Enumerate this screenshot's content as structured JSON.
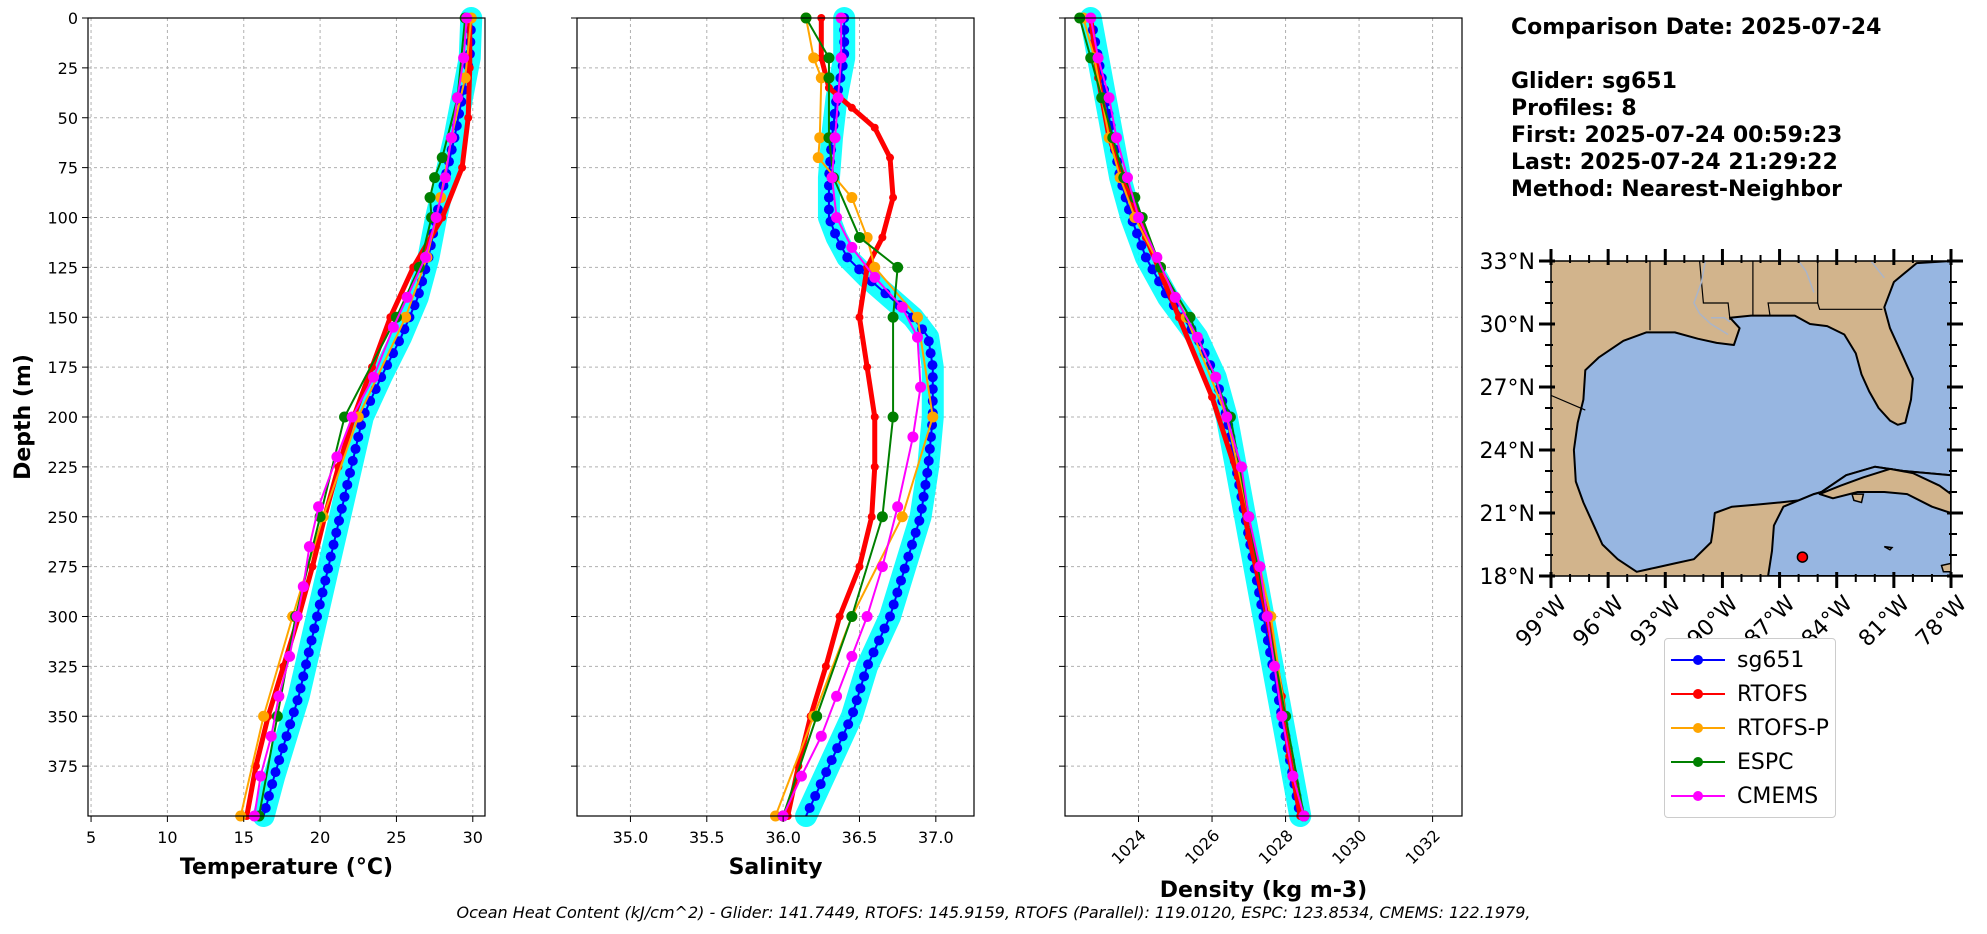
{
  "chart_data": [
    {
      "type": "line",
      "xlabel": "Temperature (°C)",
      "ylabel": "Depth (m)",
      "xlim": [
        4.8,
        30.8
      ],
      "ylim": [
        400,
        0
      ],
      "x_ticks": [
        "5",
        "10",
        "15",
        "20",
        "25",
        "30"
      ],
      "x_tick_values": [
        5,
        10,
        15,
        20,
        25,
        30
      ],
      "y_ticks": [
        "0",
        "25",
        "50",
        "75",
        "100",
        "125",
        "150",
        "175",
        "200",
        "225",
        "250",
        "275",
        "300",
        "325",
        "350",
        "375"
      ],
      "y_tick_values": [
        0,
        25,
        50,
        75,
        100,
        125,
        150,
        175,
        200,
        225,
        250,
        275,
        300,
        325,
        350,
        375
      ],
      "grid": true,
      "series": [
        {
          "name": "sg651",
          "color": "#0000ff",
          "depth": [
            0,
            20,
            40,
            60,
            80,
            100,
            120,
            140,
            160,
            180,
            200,
            220,
            240,
            260,
            280,
            300,
            320,
            340,
            360,
            380,
            400
          ],
          "values": [
            29.9,
            29.8,
            29.3,
            28.8,
            28.2,
            27.6,
            27.1,
            26.4,
            25.3,
            24.0,
            22.8,
            22.2,
            21.6,
            21.0,
            20.4,
            19.8,
            19.2,
            18.6,
            17.8,
            17.0,
            16.3
          ]
        },
        {
          "name": "RTOFS",
          "color": "#ff0000",
          "depth": [
            0,
            25,
            50,
            75,
            100,
            125,
            150,
            175,
            200,
            225,
            250,
            275,
            300,
            325,
            350,
            375,
            400
          ],
          "values": [
            29.8,
            29.8,
            29.7,
            29.3,
            28.0,
            26.1,
            24.6,
            23.4,
            22.2,
            21.2,
            20.3,
            19.5,
            18.6,
            17.6,
            16.6,
            15.8,
            15.2
          ]
        },
        {
          "name": "RTOFS-P",
          "color": "#ffa500",
          "depth": [
            0,
            30,
            60,
            90,
            120,
            150,
            200,
            250,
            300,
            350,
            400
          ],
          "values": [
            29.9,
            29.5,
            28.6,
            27.9,
            27.0,
            25.6,
            22.5,
            20.2,
            18.2,
            16.3,
            14.8
          ]
        },
        {
          "name": "ESPC",
          "color": "#008000",
          "depth": [
            0,
            40,
            70,
            80,
            90,
            100,
            125,
            150,
            200,
            250,
            300,
            350,
            400
          ],
          "values": [
            29.5,
            29.0,
            28.0,
            27.5,
            27.2,
            27.3,
            26.5,
            25.0,
            21.6,
            20.0,
            18.4,
            17.2,
            16.0
          ]
        },
        {
          "name": "CMEMS",
          "color": "#ff00ff",
          "depth": [
            0,
            20,
            40,
            60,
            80,
            100,
            120,
            140,
            155,
            180,
            200,
            220,
            245,
            265,
            285,
            300,
            320,
            340,
            360,
            380,
            400
          ],
          "values": [
            29.6,
            29.4,
            29.0,
            28.6,
            28.2,
            27.6,
            26.9,
            25.7,
            24.8,
            23.5,
            22.1,
            21.1,
            19.9,
            19.3,
            18.9,
            18.5,
            18.0,
            17.3,
            16.8,
            16.1,
            15.7
          ]
        }
      ]
    },
    {
      "type": "line",
      "xlabel": "Salinity",
      "ylim": [
        400,
        0
      ],
      "xlim": [
        34.65,
        37.25
      ],
      "x_ticks": [
        "35.0",
        "35.5",
        "36.0",
        "36.5",
        "37.0"
      ],
      "x_tick_values": [
        35.0,
        35.5,
        36.0,
        36.5,
        37.0
      ],
      "grid": true,
      "series": [
        {
          "name": "sg651",
          "depth": [
            0,
            20,
            40,
            60,
            80,
            100,
            110,
            120,
            130,
            140,
            150,
            160,
            175,
            200,
            225,
            250,
            275,
            300,
            325,
            350,
            375,
            400
          ],
          "values": [
            36.4,
            36.4,
            36.35,
            36.32,
            36.3,
            36.3,
            36.35,
            36.42,
            36.55,
            36.7,
            36.85,
            36.95,
            36.98,
            36.98,
            36.95,
            36.9,
            36.8,
            36.7,
            36.55,
            36.45,
            36.3,
            36.15
          ]
        },
        {
          "name": "RTOFS",
          "depth": [
            0,
            20,
            35,
            45,
            55,
            70,
            90,
            110,
            125,
            150,
            175,
            200,
            225,
            250,
            275,
            300,
            325,
            350,
            375,
            400
          ],
          "values": [
            36.25,
            36.25,
            36.3,
            36.45,
            36.6,
            36.7,
            36.72,
            36.65,
            36.55,
            36.5,
            36.55,
            36.6,
            36.6,
            36.58,
            36.5,
            36.37,
            36.28,
            36.18,
            36.1,
            36.03
          ]
        },
        {
          "name": "RTOFS-P",
          "depth": [
            0,
            20,
            30,
            60,
            70,
            90,
            110,
            125,
            150,
            200,
            250,
            300,
            350,
            400
          ],
          "values": [
            36.15,
            36.2,
            36.25,
            36.24,
            36.23,
            36.45,
            36.55,
            36.6,
            36.88,
            36.98,
            36.78,
            36.45,
            36.2,
            35.95
          ]
        },
        {
          "name": "ESPC",
          "depth": [
            0,
            20,
            30,
            60,
            80,
            110,
            125,
            150,
            200,
            250,
            300,
            350,
            400
          ],
          "values": [
            36.15,
            36.3,
            36.3,
            36.3,
            36.33,
            36.5,
            36.75,
            36.72,
            36.72,
            36.65,
            36.45,
            36.22,
            36.0
          ]
        },
        {
          "name": "CMEMS",
          "depth": [
            0,
            20,
            40,
            60,
            80,
            100,
            115,
            130,
            145,
            160,
            185,
            210,
            245,
            275,
            300,
            320,
            340,
            360,
            380,
            400
          ],
          "values": [
            36.38,
            36.38,
            36.36,
            36.34,
            36.32,
            36.35,
            36.45,
            36.6,
            36.78,
            36.88,
            36.9,
            36.85,
            36.75,
            36.65,
            36.55,
            36.45,
            36.35,
            36.25,
            36.12,
            36.0
          ]
        }
      ]
    },
    {
      "type": "line",
      "xlabel": "Density (kg m-3)",
      "ylim": [
        400,
        0
      ],
      "xlim": [
        1022.0,
        1032.8
      ],
      "x_ticks": [
        "1024",
        "1026",
        "1028",
        "1030",
        "1032"
      ],
      "x_tick_values": [
        1024,
        1026,
        1028,
        1030,
        1032
      ],
      "grid": true,
      "series": [
        {
          "name": "sg651",
          "depth": [
            0,
            20,
            40,
            60,
            80,
            100,
            120,
            140,
            160,
            180,
            200,
            220,
            240,
            260,
            280,
            300,
            320,
            340,
            360,
            380,
            400
          ],
          "values": [
            1022.7,
            1022.9,
            1023.1,
            1023.3,
            1023.5,
            1023.8,
            1024.2,
            1024.8,
            1025.6,
            1026.1,
            1026.4,
            1026.6,
            1026.8,
            1027.0,
            1027.2,
            1027.4,
            1027.6,
            1027.8,
            1028.0,
            1028.2,
            1028.4
          ]
        },
        {
          "name": "RTOFS",
          "depth": [
            0,
            30,
            60,
            90,
            110,
            150,
            190,
            230,
            260,
            300,
            340,
            370,
            400
          ],
          "values": [
            1022.7,
            1022.9,
            1023.2,
            1023.8,
            1024.2,
            1025.1,
            1026.0,
            1026.7,
            1027.0,
            1027.5,
            1027.9,
            1028.1,
            1028.4
          ]
        },
        {
          "name": "RTOFS-P",
          "depth": [
            0,
            20,
            40,
            60,
            80,
            100,
            125,
            150,
            200,
            250,
            300,
            350,
            400
          ],
          "values": [
            1022.5,
            1022.8,
            1023.0,
            1023.2,
            1023.5,
            1023.9,
            1024.6,
            1025.3,
            1026.4,
            1027.0,
            1027.6,
            1028.0,
            1028.5
          ]
        },
        {
          "name": "ESPC",
          "depth": [
            0,
            20,
            40,
            60,
            80,
            90,
            100,
            125,
            150,
            200,
            250,
            300,
            350,
            400
          ],
          "values": [
            1022.4,
            1022.7,
            1023.0,
            1023.3,
            1023.6,
            1023.9,
            1024.1,
            1024.6,
            1025.4,
            1026.5,
            1027.0,
            1027.5,
            1028.0,
            1028.5
          ]
        },
        {
          "name": "CMEMS",
          "depth": [
            0,
            20,
            40,
            60,
            80,
            100,
            120,
            140,
            160,
            180,
            200,
            225,
            250,
            275,
            300,
            325,
            350,
            380,
            400
          ],
          "values": [
            1022.7,
            1022.9,
            1023.2,
            1023.4,
            1023.7,
            1024.0,
            1024.5,
            1025.0,
            1025.6,
            1026.1,
            1026.4,
            1026.8,
            1027.0,
            1027.3,
            1027.5,
            1027.7,
            1027.9,
            1028.2,
            1028.5
          ]
        }
      ]
    },
    {
      "type": "map",
      "lon_ticks": [
        "99°W",
        "96°W",
        "93°W",
        "90°W",
        "87°W",
        "84°W",
        "81°W",
        "78°W"
      ],
      "lon_values": [
        -99,
        -96,
        -93,
        -90,
        -87,
        -84,
        -81,
        -78
      ],
      "lat_ticks": [
        "33°N",
        "30°N",
        "27°N",
        "24°N",
        "21°N",
        "18°N"
      ],
      "lat_values": [
        33,
        30,
        27,
        24,
        21,
        18
      ],
      "lon_range": [
        -99,
        -78
      ],
      "lat_range": [
        18,
        33
      ],
      "land_color": "#d2b48c",
      "ocean_color": "#97b6e1",
      "marker": {
        "lon": -85.8,
        "lat": 18.9,
        "color": "#ff0000"
      }
    }
  ],
  "series_colors": {
    "sg651": "#0000ff",
    "RTOFS": "#ff0000",
    "RTOFS-P": "#ffa500",
    "ESPC": "#008000",
    "CMEMS": "#ff00ff"
  },
  "info_text": "Comparison Date: 2025-07-24\n\nGlider: sg651\nProfiles: 8\nFirst: 2025-07-24 00:59:23\nLast: 2025-07-24 21:29:22\nMethod: Nearest-Neighbor",
  "legend": [
    "sg651",
    "RTOFS",
    "RTOFS-P",
    "ESPC",
    "CMEMS"
  ],
  "footer": "Ocean Heat Content (kJ/cm^2) - Glider: 141.7449,  RTOFS: 145.9159,  RTOFS (Parallel): 119.0120,  ESPC: 123.8534,  CMEMS: 122.1979,"
}
